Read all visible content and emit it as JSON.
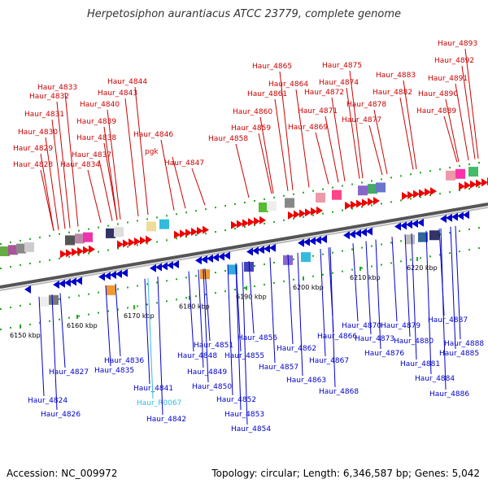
{
  "title": "Herpetosiphon aurantiacus ATCC 23779, complete genome",
  "accession": "Accession: NC_009972",
  "summary": "Topology: circular; Length: 6,346,587 bp; Genes: 5,042",
  "colors": {
    "plus_label": "#cc0000",
    "minus_label": "#0000cc",
    "rna_label": "#33bbdd",
    "backbone": "#999999",
    "tick": "#22aa22"
  },
  "scale_labels": [
    "6150 kbp",
    "6160 kbp",
    "6170 kbp",
    "6180 kbp",
    "6190 kbp",
    "6200 kbp",
    "6210 kbp",
    "6220 kbp"
  ],
  "top_genes": [
    "Haur_4828",
    "Haur_4829",
    "Haur_4830",
    "Haur_4831",
    "Haur_4832",
    "Haur_4833",
    "Haur_4834",
    "Haur_4837",
    "Haur_4838",
    "Haur_4839",
    "Haur_4840",
    "Haur_4843",
    "Haur_4844",
    "Haur_4846",
    "pgk",
    "Haur_4847",
    "Haur_4858",
    "Haur_4859",
    "Haur_4860",
    "Haur_4861",
    "Haur_4864",
    "Haur_4865",
    "Haur_4869",
    "Haur_4871",
    "Haur_4872",
    "Haur_4874",
    "Haur_4875",
    "Haur_4877",
    "Haur_4878",
    "Haur_4882",
    "Haur_4883",
    "Haur_4889",
    "Haur_4890",
    "Haur_4891",
    "Haur_4892",
    "Haur_4893"
  ],
  "bottom_genes": [
    "Haur_4824",
    "Haur_4826",
    "Haur_4827",
    "Haur_4835",
    "Haur_4836",
    "Haur_4841",
    "Haur_R0067",
    "Haur_4842",
    "Haur_4848",
    "Haur_4849",
    "Haur_4850",
    "Haur_4851",
    "Haur_4852",
    "Haur_4853",
    "Haur_4854",
    "Haur_4855",
    "Haur_4856",
    "Haur_4857",
    "Haur_4862",
    "Haur_4863",
    "Haur_4866",
    "Haur_4867",
    "Haur_4868",
    "Haur_4870",
    "Haur_4873",
    "Haur_4876",
    "Haur_4879",
    "Haur_4880",
    "Haur_4881",
    "Haur_4884",
    "Haur_4885",
    "Haur_4886",
    "Haur_4887",
    "Haur_4888"
  ]
}
